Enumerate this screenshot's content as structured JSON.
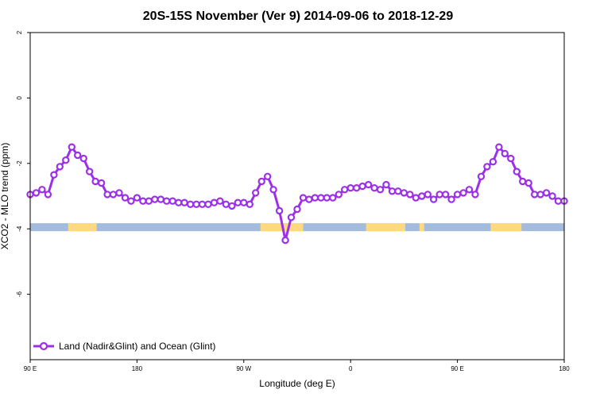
{
  "chart_data": {
    "type": "line",
    "title": "20S-15S November (Ver 9)   2014-09-06 to 2018-12-29",
    "xlabel": "Longitude (deg E)",
    "ylabel": "XCO2 - MLO trend (ppm)",
    "xlim": [
      90,
      540
    ],
    "ylim": [
      -8,
      2
    ],
    "x_ticks": [
      {
        "value": 90,
        "label": "90 E"
      },
      {
        "value": 180,
        "label": "180"
      },
      {
        "value": 270,
        "label": "90 W"
      },
      {
        "value": 360,
        "label": "0"
      },
      {
        "value": 450,
        "label": "90 E"
      },
      {
        "value": 540,
        "label": "180"
      }
    ],
    "y_ticks": [
      {
        "value": 2,
        "label": "2"
      },
      {
        "value": 0,
        "label": "0"
      },
      {
        "value": -2,
        "label": "-2"
      },
      {
        "value": -4,
        "label": "-4"
      },
      {
        "value": -6,
        "label": "-6"
      }
    ],
    "series": [
      {
        "name": "Land (Nadir&Glint) and Ocean (Glint)",
        "color": "#9b30e8",
        "x": [
          90,
          95,
          100,
          105,
          110,
          115,
          120,
          125,
          130,
          135,
          140,
          145,
          150,
          155,
          160,
          165,
          170,
          175,
          180,
          185,
          190,
          195,
          200,
          205,
          210,
          215,
          220,
          225,
          230,
          235,
          240,
          245,
          250,
          255,
          260,
          265,
          270,
          275,
          280,
          285,
          290,
          295,
          300,
          305,
          310,
          315,
          320,
          325,
          330,
          335,
          340,
          345,
          350,
          355,
          360,
          365,
          370,
          375,
          380,
          385,
          390,
          395,
          400,
          405,
          410,
          415,
          420,
          425,
          430,
          435,
          440,
          445,
          450,
          455,
          460,
          465,
          470,
          475,
          480,
          485,
          490,
          495,
          500,
          505,
          510,
          515,
          520,
          525,
          530,
          535,
          540
        ],
        "values": [
          -2.95,
          -2.9,
          -2.8,
          -2.95,
          -2.35,
          -2.1,
          -1.9,
          -1.5,
          -1.75,
          -1.85,
          -2.25,
          -2.55,
          -2.6,
          -2.95,
          -2.95,
          -2.9,
          -3.05,
          -3.15,
          -3.05,
          -3.15,
          -3.15,
          -3.1,
          -3.1,
          -3.15,
          -3.15,
          -3.2,
          -3.2,
          -3.25,
          -3.25,
          -3.25,
          -3.25,
          -3.2,
          -3.15,
          -3.25,
          -3.3,
          -3.2,
          -3.2,
          -3.25,
          -2.9,
          -2.55,
          -2.4,
          -2.8,
          -3.45,
          -4.35,
          -3.65,
          -3.4,
          -3.05,
          -3.1,
          -3.05,
          -3.05,
          -3.05,
          -3.05,
          -2.95,
          -2.8,
          -2.75,
          -2.75,
          -2.7,
          -2.65,
          -2.75,
          -2.8,
          -2.65,
          -2.85,
          -2.85,
          -2.9,
          -2.95,
          -3.05,
          -3.0,
          -2.95,
          -3.1,
          -2.95,
          -2.95,
          -3.1,
          -2.95,
          -2.9,
          -2.8,
          -2.95,
          -2.4,
          -2.1,
          -1.95,
          -1.5,
          -1.7,
          -1.85,
          -2.25,
          -2.55,
          -2.6,
          -2.95,
          -2.95,
          -2.9,
          -3.0,
          -3.15,
          -3.15
        ]
      }
    ],
    "surface_band": {
      "y": -3.95,
      "ocean_color": "#a3bbdd",
      "land_color": "#fed97f",
      "land_segments": [
        [
          122,
          146
        ],
        [
          284,
          320
        ],
        [
          373,
          406
        ],
        [
          418,
          422
        ],
        [
          478,
          504
        ]
      ]
    },
    "legend": {
      "position": "bottom-left",
      "label": "Land (Nadir&Glint) and Ocean (Glint)"
    }
  }
}
